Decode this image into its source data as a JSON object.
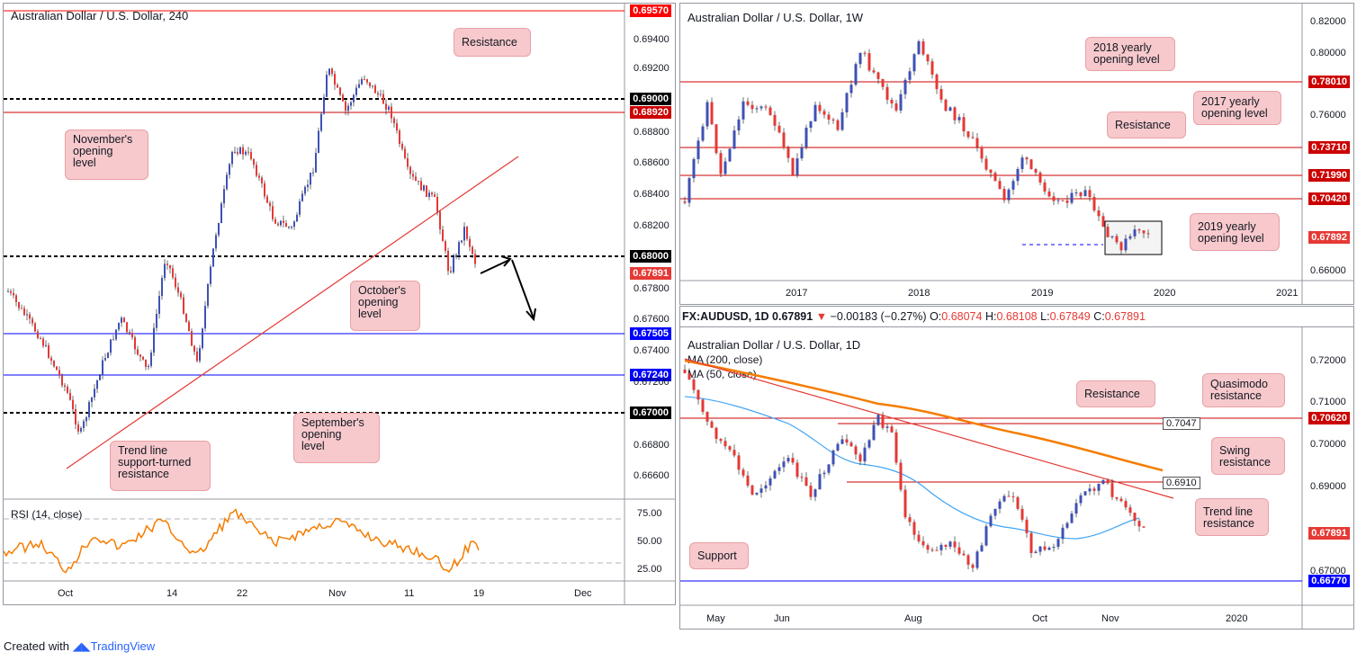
{
  "panels": {
    "h4": {
      "title": "Australian Dollar / U.S. Dollar, 240",
      "levels": [
        {
          "value": "0.69570",
          "color": "#ff0000",
          "style": "solid"
        },
        {
          "value": "0.69000",
          "color": "#000000",
          "style": "dashed"
        },
        {
          "value": "0.68920",
          "color": "#cc0000",
          "style": "solid"
        },
        {
          "value": "0.68000",
          "color": "#000000",
          "style": "dashed"
        },
        {
          "value": "0.67891",
          "color": "#e53935",
          "style": "none"
        },
        {
          "value": "0.67505",
          "color": "#0000ff",
          "style": "solid"
        },
        {
          "value": "0.67240",
          "color": "#0000ff",
          "style": "solid"
        },
        {
          "value": "0.67000",
          "color": "#000000",
          "style": "dashed"
        }
      ],
      "y_ticks": [
        "0.69400",
        "0.69200",
        "0.68800",
        "0.68600",
        "0.68400",
        "0.68200",
        "0.67800",
        "0.67600",
        "0.67400",
        "0.67200",
        "0.66800",
        "0.66600"
      ],
      "x_ticks": [
        "Oct",
        "14",
        "22",
        "Nov",
        "11",
        "19",
        "Dec"
      ],
      "callouts": {
        "resistance": "Resistance",
        "november": "November's\nopening\nlevel",
        "october": "October's\nopening\nlevel",
        "september": "September's\nopening\nlevel",
        "trendline": "Trend line\nsupport-turned\nresistance"
      },
      "rsi": {
        "label": "RSI (14, close)",
        "ticks": [
          "75.00",
          "50.00",
          "25.00"
        ]
      }
    },
    "weekly": {
      "title": "Australian Dollar / U.S. Dollar, 1W",
      "levels": [
        {
          "value": "0.78010",
          "color": "#cc0000"
        },
        {
          "value": "0.73710",
          "color": "#cc0000"
        },
        {
          "value": "0.71990",
          "color": "#cc0000"
        },
        {
          "value": "0.70420",
          "color": "#cc0000"
        },
        {
          "value": "0.67892",
          "color": "#e53935"
        }
      ],
      "y_ticks": [
        "0.82000",
        "0.80000",
        "0.76000",
        "0.66000"
      ],
      "x_ticks": [
        "2017",
        "2018",
        "2019",
        "2020",
        "2021"
      ],
      "callouts": {
        "y2018": "2018 yearly\nopening level",
        "y2017": "2017 yearly\nopening level",
        "resistance": "Resistance",
        "y2019": "2019 yearly\nopening level"
      }
    },
    "daily": {
      "title": "Australian Dollar / U.S. Dollar, 1D",
      "quote": {
        "symbol": "FX:AUDUSD, 1D",
        "last": "0.67891",
        "arrow": "▼",
        "change": "−0.00183 (−0.27%)",
        "o_label": "O:",
        "o": "0.68074",
        "h_label": "H:",
        "h": "0.68108",
        "l_label": "L:",
        "l": "0.67849",
        "c_label": "C:",
        "c": "0.67891"
      },
      "ma200": "MA (200, close)",
      "ma50": "MA (50, close)",
      "levels": [
        {
          "value": "0.70620",
          "color": "#cc0000"
        },
        {
          "value": "0.67891",
          "color": "#e53935"
        },
        {
          "value": "0.66770",
          "color": "#0000ff"
        }
      ],
      "inline_labels": [
        "0.7047",
        "0.6910"
      ],
      "y_ticks": [
        "0.72000",
        "0.71000",
        "0.70000",
        "0.69000",
        "0.67000"
      ],
      "x_ticks": [
        "May",
        "Jun",
        "Aug",
        "Oct",
        "Nov",
        "2020"
      ],
      "callouts": {
        "resistance": "Resistance",
        "quasimodo": "Quasimodo\nresistance",
        "swing": "Swing\nresistance",
        "trendline": "Trend line\nresistance",
        "support": "Support"
      }
    }
  },
  "footer": {
    "created": "Created with",
    "brand": "TradingView"
  }
}
